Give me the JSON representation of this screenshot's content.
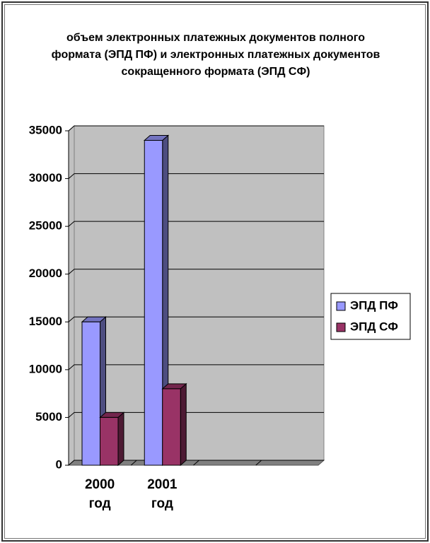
{
  "chart_data": {
    "type": "bar3d",
    "title": "объем электронных платежных документов полного формата (ЭПД ПФ) и электронных платежных документов сокращенного формата (ЭПД СФ)",
    "categories": [
      "2000 год",
      "2001 год",
      null,
      null
    ],
    "series": [
      {
        "name": "ЭПД ПФ",
        "color": "#9999ff",
        "values": [
          15000,
          34000,
          null,
          null
        ]
      },
      {
        "name": "ЭПД СФ",
        "color": "#993366",
        "values": [
          5000,
          8000,
          null,
          null
        ]
      }
    ],
    "ylim": [
      0,
      35000
    ],
    "yticks": [
      0,
      5000,
      10000,
      15000,
      20000,
      25000,
      30000,
      35000
    ],
    "grid": true,
    "legend": "right"
  }
}
